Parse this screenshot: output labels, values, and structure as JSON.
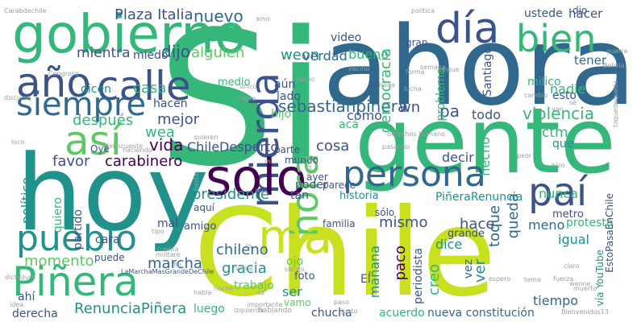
{
  "palette": {
    "purple": "#440154",
    "indigo": "#3b528b",
    "blue": "#31688e",
    "teal": "#21918c",
    "green": "#35b779",
    "lime": "#5ec962",
    "yellow": "#c8e020",
    "bright": "#fde725",
    "grey": "#9aa0a6"
  },
  "words": [
    {
      "text": "Chile",
      "color": "#c8e020"
    },
    {
      "text": "Si",
      "color": "#35b779"
    },
    {
      "text": "ahora",
      "color": "#31688e"
    },
    {
      "text": "gente",
      "color": "#35b779"
    },
    {
      "text": "hoy",
      "color": "#21918c"
    },
    {
      "text": "gobierno",
      "color": "#35b779"
    },
    {
      "text": "día",
      "color": "#3b528b"
    },
    {
      "text": "bien",
      "color": "#35b779"
    },
    {
      "text": "año",
      "color": "#3b528b"
    },
    {
      "text": "calle",
      "color": "#3b528b"
    },
    {
      "text": "siempre",
      "color": "#31688e"
    },
    {
      "text": "así",
      "color": "#5ec962"
    },
    {
      "text": "mierda",
      "color": "#3b528b"
    },
    {
      "text": "solo",
      "color": "#440154"
    },
    {
      "text": "persona",
      "color": "#31688e"
    },
    {
      "text": "paí",
      "color": "#3b528b"
    },
    {
      "text": "hora",
      "color": "#5ec962"
    },
    {
      "text": "ma",
      "color": "#c8e020"
    },
    {
      "text": "pueblo",
      "color": "#21918c"
    },
    {
      "text": "Piñera",
      "color": "#35b779"
    },
    {
      "text": "sebastianpinera",
      "color": "#31688e"
    },
    {
      "text": "Plaza Italia",
      "color": "#3b528b"
    },
    {
      "text": "nuevo",
      "color": "#31688e"
    },
    {
      "text": "mientra",
      "color": "#3b528b"
    },
    {
      "text": "miedo",
      "color": "#3b528b"
    },
    {
      "text": "dijo",
      "color": "#3b528b"
    },
    {
      "text": "alguien",
      "color": "#5ec962"
    },
    {
      "text": "weon",
      "color": "#21918c"
    },
    {
      "text": "verdad",
      "color": "#31688e"
    },
    {
      "text": "bueno",
      "color": "#35b779"
    },
    {
      "text": "tener",
      "color": "#31688e"
    },
    {
      "text": "hacer",
      "color": "#3b528b"
    },
    {
      "text": "democracia",
      "color": "#35b779"
    },
    {
      "text": "casa",
      "color": "#35b779"
    },
    {
      "text": "hacen",
      "color": "#3b528b"
    },
    {
      "text": "mejor",
      "color": "#3b528b"
    },
    {
      "text": "después",
      "color": "#35b779"
    },
    {
      "text": "wea",
      "color": "#35b779"
    },
    {
      "text": "vida",
      "color": "#440154"
    },
    {
      "text": "dicen",
      "color": "#21918c"
    },
    {
      "text": "aún",
      "color": "#3b528b"
    },
    {
      "text": "lado",
      "color": "#3b528b"
    },
    {
      "text": "wn",
      "color": "#3b528b"
    },
    {
      "text": "pa",
      "color": "#3b528b"
    },
    {
      "text": "todo",
      "color": "#3b528b"
    },
    {
      "text": "violencia",
      "color": "#35b779"
    },
    {
      "text": "cómo",
      "color": "#3b528b"
    },
    {
      "text": "nadie",
      "color": "#35b779"
    },
    {
      "text": "milico",
      "color": "#35b779"
    },
    {
      "text": "esto",
      "color": "#3b528b"
    },
    {
      "text": "problema",
      "color": "#35b779"
    },
    {
      "text": "Santiago",
      "color": "#3b528b"
    },
    {
      "text": "ctm",
      "color": "#35b779"
    },
    {
      "text": "que",
      "color": "#21918c"
    },
    {
      "text": "ChileDesperto",
      "color": "#3b528b"
    },
    {
      "text": "cosa",
      "color": "#3b528b"
    },
    {
      "text": "favor",
      "color": "#3b528b"
    },
    {
      "text": "carabinero",
      "color": "#440154"
    },
    {
      "text": "político",
      "color": "#21918c"
    },
    {
      "text": "mundo",
      "color": "#3b528b"
    },
    {
      "text": "presidente",
      "color": "#21918c"
    },
    {
      "text": "tan",
      "color": "#3b528b"
    },
    {
      "text": "nunca",
      "color": "#35b779"
    },
    {
      "text": "hace",
      "color": "#3b528b"
    },
    {
      "text": "toque",
      "color": "#31688e"
    },
    {
      "text": "queda",
      "color": "#31688e"
    },
    {
      "text": "mismo",
      "color": "#3b528b"
    },
    {
      "text": "igual",
      "color": "#21918c"
    },
    {
      "text": "meno",
      "color": "#31688e"
    },
    {
      "text": "protesta",
      "color": "#35b779"
    },
    {
      "text": "PiñeraRenuncia",
      "color": "#21918c"
    },
    {
      "text": "vía YouTube",
      "color": "#21918c"
    },
    {
      "text": "EstoPasaEnChile",
      "color": "#3b528b"
    },
    {
      "text": "momento",
      "color": "#5ec962"
    },
    {
      "text": "marcha",
      "color": "#31688e"
    },
    {
      "text": "chileno",
      "color": "#31688e"
    },
    {
      "text": "gracia",
      "color": "#21918c"
    },
    {
      "text": "paco",
      "color": "#440154"
    },
    {
      "text": "creo",
      "color": "#35b779"
    },
    {
      "text": "ojo",
      "color": "#5ec962"
    },
    {
      "text": "dice",
      "color": "#21918c"
    },
    {
      "text": "ver",
      "color": "#21918c"
    },
    {
      "text": "grande",
      "color": "#3b528b"
    },
    {
      "text": "mañana",
      "color": "#21918c"
    },
    {
      "text": "periodista",
      "color": "#3b528b"
    },
    {
      "text": "vez",
      "color": "#31688e"
    },
    {
      "text": "tiempo",
      "color": "#31688e"
    },
    {
      "text": "RenunciaPiñera",
      "color": "#21918c"
    },
    {
      "text": "trabajo",
      "color": "#5ec962"
    },
    {
      "text": "chucha",
      "color": "#3b528b"
    },
    {
      "text": "acuerdo",
      "color": "#35b779"
    },
    {
      "text": "nueva constitución",
      "color": "#31688e"
    },
    {
      "text": "derecha",
      "color": "#3b528b"
    },
    {
      "text": "ahí",
      "color": "#3b528b"
    },
    {
      "text": "luego",
      "color": "#35b779"
    },
    {
      "text": "ser",
      "color": "#21918c"
    },
    {
      "text": "foto",
      "color": "#3b528b"
    },
    {
      "text": "poder",
      "color": "#3b528b"
    },
    {
      "text": "El",
      "color": "#3b528b"
    },
    {
      "text": "historia",
      "color": "#21918c"
    },
    {
      "text": "sólo",
      "color": "#3b528b"
    },
    {
      "text": "parece",
      "color": "#3b528b"
    },
    {
      "text": "ayer",
      "color": "#3b528b"
    },
    {
      "text": "decir",
      "color": "#3b528b"
    },
    {
      "text": "hecho",
      "color": "#35b779"
    },
    {
      "text": "cara",
      "color": "#3b528b"
    },
    {
      "text": "aquí",
      "color": "#3b528b"
    },
    {
      "text": "mal",
      "color": "#3b528b"
    },
    {
      "text": "amigo",
      "color": "#3b528b"
    },
    {
      "text": "quiero",
      "color": "#35b779"
    },
    {
      "text": "partido",
      "color": "#3b528b"
    },
    {
      "text": "Oye",
      "color": "#3b528b"
    },
    {
      "text": "hijo",
      "color": "#5ec962"
    },
    {
      "text": "acá",
      "color": "#35b779"
    },
    {
      "text": "parte",
      "color": "#3b528b"
    },
    {
      "text": "medio",
      "color": "#35b779"
    },
    {
      "text": "video",
      "color": "#3b528b"
    },
    {
      "text": "gran",
      "color": "#3b528b"
    },
    {
      "text": "ustede",
      "color": "#3b528b"
    },
    {
      "text": "dio",
      "color": "#3b528b"
    },
    {
      "text": "metro",
      "color": "#3b528b"
    },
    {
      "text": "familia",
      "color": "#3b528b"
    },
    {
      "text": "puede",
      "color": "#3b528b"
    },
    {
      "text": "vamo",
      "color": "#5ec962"
    },
    {
      "text": "LaMarchaMasGrandeDeChile",
      "color": "#3b528b"
    },
    {
      "text": "Carabdechile",
      "color": "#9aa0a6"
    },
    {
      "text": "política",
      "color": "#9aa0a6"
    },
    {
      "text": "Congreso",
      "color": "#9aa0a6"
    },
    {
      "text": "Bolivia",
      "color": "#9aa0a6"
    },
    {
      "text": "Bienvenidos13",
      "color": "#9aa0a6"
    },
    {
      "text": "hablando",
      "color": "#9aa0a6"
    },
    {
      "text": "izquierda",
      "color": "#9aa0a6"
    },
    {
      "text": "dictadura",
      "color": "#9aa0a6"
    },
    {
      "text": "derechos humano",
      "color": "#9aa0a6"
    },
    {
      "text": "vecino",
      "color": "#9aa0a6"
    },
    {
      "text": "lucha",
      "color": "#9aa0a6"
    },
    {
      "text": "cambio",
      "color": "#9aa0a6"
    },
    {
      "text": "guerra",
      "color": "#9aa0a6"
    },
    {
      "text": "toquedequeda",
      "color": "#9aa0a6"
    },
    {
      "text": "fuerza",
      "color": "#9aa0a6"
    },
    {
      "text": "muerto",
      "color": "#9aa0a6"
    },
    {
      "text": "quieren",
      "color": "#9aa0a6"
    },
    {
      "text": "delincuente",
      "color": "#9aa0a6"
    },
    {
      "text": "haciendo",
      "color": "#9aa0a6"
    },
    {
      "text": "discurso",
      "color": "#9aa0a6"
    },
    {
      "text": "militare",
      "color": "#9aa0a6"
    },
    {
      "text": "cuenta",
      "color": "#9aa0a6"
    },
    {
      "text": "importante",
      "color": "#9aa0a6"
    },
    {
      "text": "pasando",
      "color": "#9aa0a6"
    },
    {
      "text": "semana",
      "color": "#9aa0a6"
    },
    {
      "text": "forma",
      "color": "#9aa0a6"
    },
    {
      "text": "único",
      "color": "#9aa0a6"
    },
    {
      "text": "sigue",
      "color": "#9aa0a6"
    },
    {
      "text": "nada",
      "color": "#9aa0a6"
    },
    {
      "text": "peor",
      "color": "#9aa0a6"
    },
    {
      "text": "claro",
      "color": "#9aa0a6"
    },
    {
      "text": "espero",
      "color": "#9aa0a6"
    },
    {
      "text": "junto",
      "color": "#9aa0a6"
    },
    {
      "text": "siento",
      "color": "#9aa0a6"
    },
    {
      "text": "habla",
      "color": "#9aa0a6"
    },
    {
      "text": "viene",
      "color": "#9aa0a6"
    },
    {
      "text": "noche",
      "color": "#9aa0a6"
    },
    {
      "text": "paso",
      "color": "#9aa0a6"
    },
    {
      "text": "basta",
      "color": "#9aa0a6"
    },
    {
      "text": "misma",
      "color": "#9aa0a6"
    },
    {
      "text": "weone",
      "color": "#9aa0a6"
    },
    {
      "text": "tema",
      "color": "#9aa0a6"
    },
    {
      "text": "hizo",
      "color": "#9aa0a6"
    },
    {
      "text": "loco",
      "color": "#9aa0a6"
    },
    {
      "text": "idea",
      "color": "#9aa0a6"
    },
    {
      "text": "tipo",
      "color": "#9aa0a6"
    },
    {
      "text": "cabro",
      "color": "#9aa0a6"
    },
    {
      "text": "facho",
      "color": "#9aa0a6"
    },
    {
      "text": "fin",
      "color": "#9aa0a6"
    },
    {
      "text": "van",
      "color": "#9aa0a6"
    },
    {
      "text": "sé",
      "color": "#9aa0a6"
    },
    {
      "text": "amo",
      "color": "#9aa0a6"
    },
    {
      "text": "lo",
      "color": "#9aa0a6"
    },
    {
      "text": "da",
      "color": "#9aa0a6"
    },
    {
      "text": "mi",
      "color": "#9aa0a6"
    }
  ]
}
